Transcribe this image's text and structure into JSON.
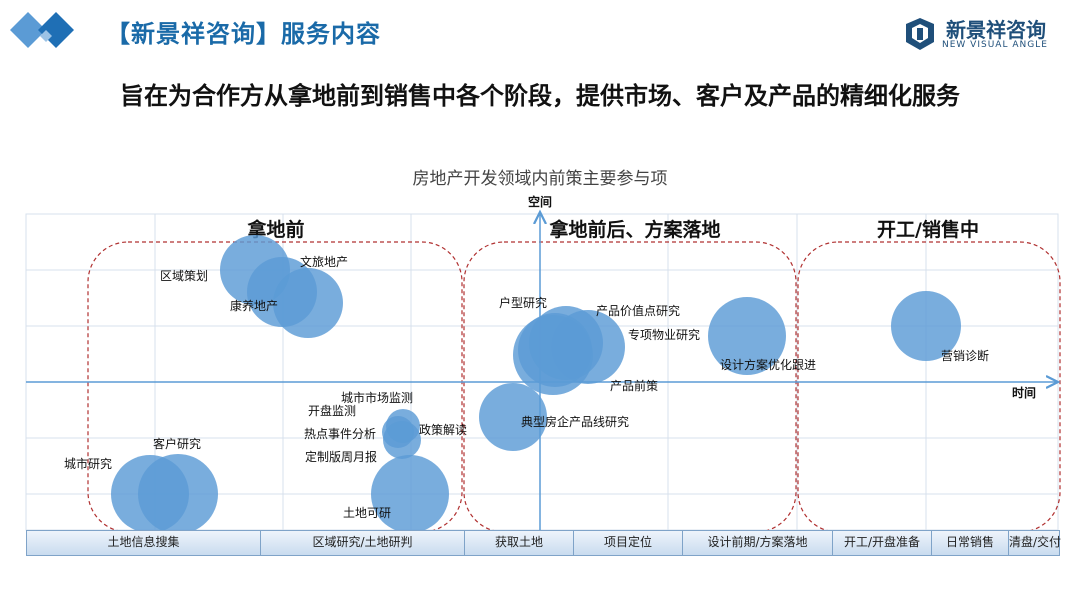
{
  "header": {
    "title": "【新景祥咨询】服务内容"
  },
  "brand": {
    "name_cn": "新景祥咨询",
    "name_en": "NEW VISUAL ANGLE",
    "color": "#1f4f7a"
  },
  "subtitle": "旨在为合作方从拿地前到销售中各个阶段，提供市场、客户及产品的精细化服务",
  "diagram": {
    "title": "房地产开发领域内前策主要参与项",
    "axis_x_label": "时间",
    "axis_y_label": "空间",
    "groups": [
      {
        "label": "拿地前"
      },
      {
        "label": "拿地前后、方案落地"
      },
      {
        "label": "开工/销售中"
      }
    ],
    "bubbles": [
      {
        "label": "区域策划"
      },
      {
        "label": "文旅地产"
      },
      {
        "label": "康养地产"
      },
      {
        "label": "城市研究"
      },
      {
        "label": "客户研究"
      },
      {
        "label": "城市市场监测"
      },
      {
        "label": "开盘监测"
      },
      {
        "label": "热点事件分析"
      },
      {
        "label": "政策解读"
      },
      {
        "label": "定制版周月报"
      },
      {
        "label": "土地可研"
      },
      {
        "label": "户型研究"
      },
      {
        "label": "产品价值点研究"
      },
      {
        "label": "专项物业研究"
      },
      {
        "label": "产品前策"
      },
      {
        "label": "典型房企产品线研究"
      },
      {
        "label": "设计方案优化跟进"
      },
      {
        "label": "营销诊断"
      }
    ],
    "phases": [
      {
        "label": "土地信息搜集"
      },
      {
        "label": "区域研究/土地研判"
      },
      {
        "label": "获取土地"
      },
      {
        "label": "项目定位"
      },
      {
        "label": "设计前期/方案落地"
      },
      {
        "label": "开工/开盘准备"
      },
      {
        "label": "日常销售"
      },
      {
        "label": "清盘/交付"
      }
    ],
    "colors": {
      "bubble": "#5b9bd5",
      "axis": "#5b9bd5",
      "group_border": "#b03030",
      "grid": "#d7e1ec"
    }
  }
}
